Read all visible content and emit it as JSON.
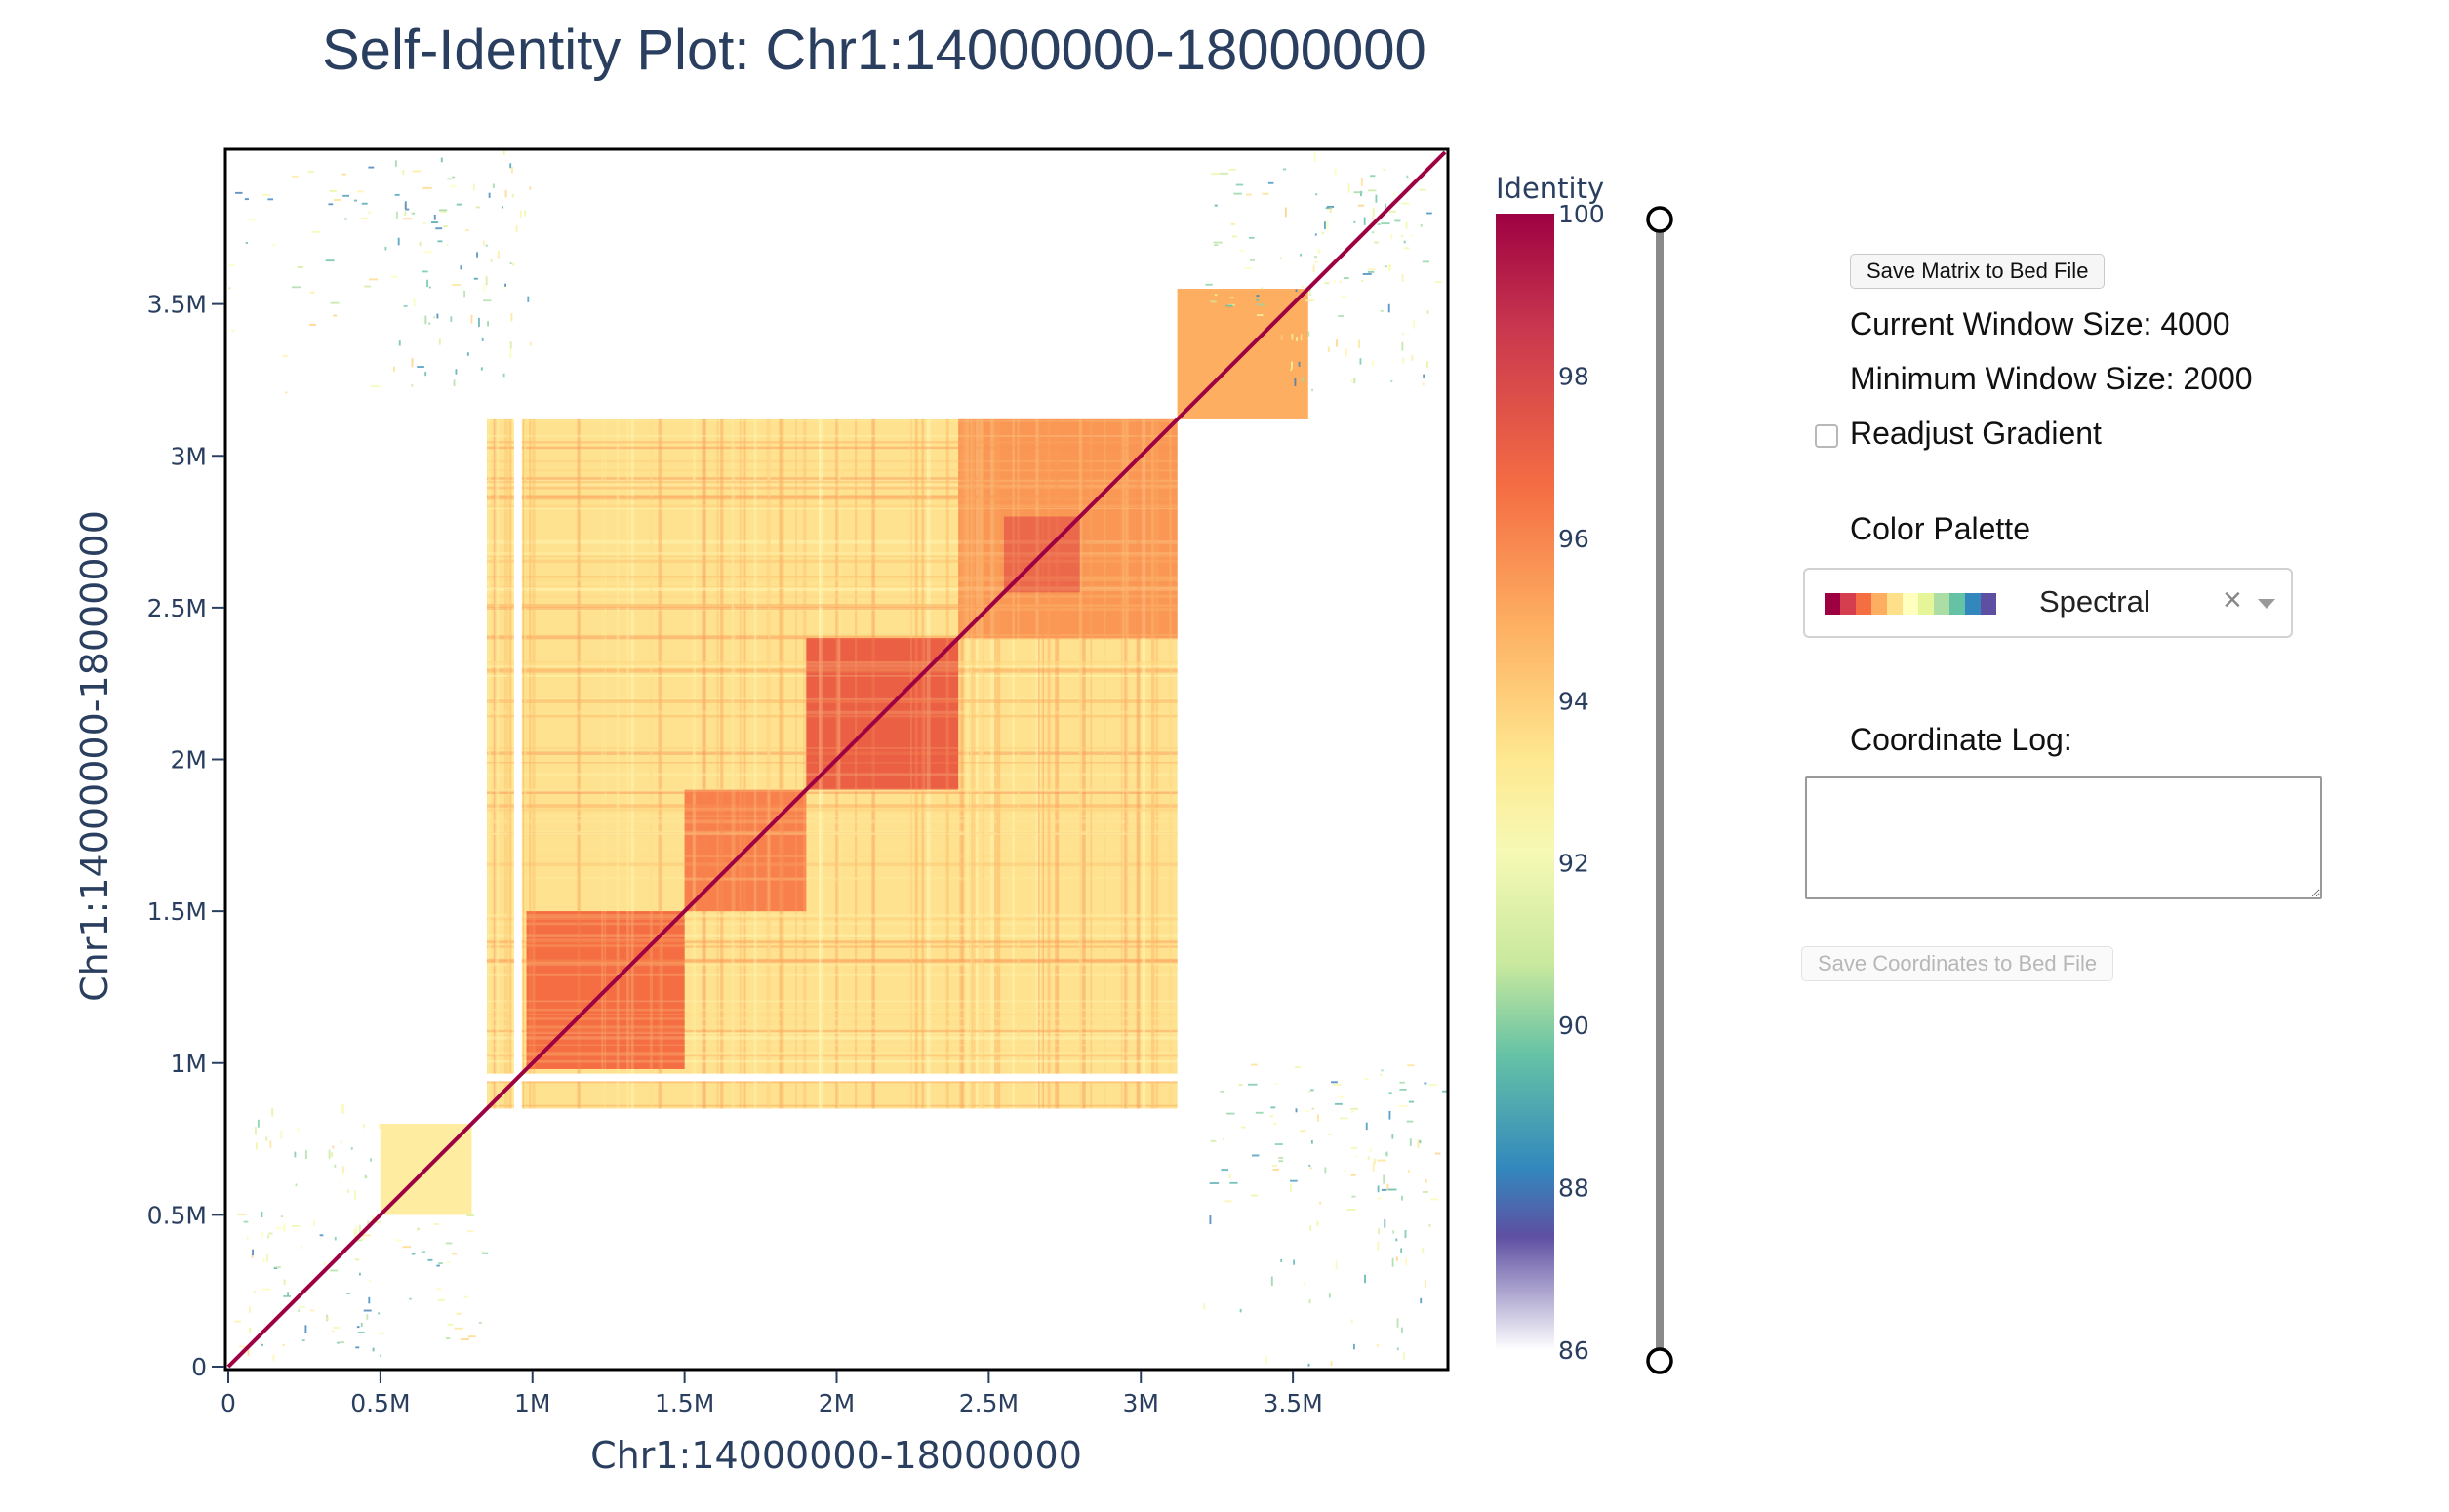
{
  "plot": {
    "title": "Self-Identity Plot: Chr1:14000000-18000000",
    "xlabel": "Chr1:14000000-18000000",
    "ylabel": "Chr1:14000000-18000000"
  },
  "colorbar": {
    "title": "Identity",
    "ticks": [
      "100",
      "98",
      "96",
      "94",
      "92",
      "90",
      "88",
      "86"
    ]
  },
  "chart_data": {
    "type": "heatmap",
    "title": "Self-Identity Plot: Chr1:14000000-18000000",
    "xlabel": "Chr1:14000000-18000000",
    "ylabel": "Chr1:14000000-18000000",
    "xlim": [
      0,
      4000000
    ],
    "ylim": [
      0,
      4000000
    ],
    "x_ticks": [
      0,
      500000,
      1000000,
      1500000,
      2000000,
      2500000,
      3000000,
      3500000
    ],
    "x_tick_labels": [
      "0",
      "0.5M",
      "1M",
      "1.5M",
      "2M",
      "2.5M",
      "3M",
      "3.5M"
    ],
    "y_ticks": [
      0,
      500000,
      1000000,
      1500000,
      2000000,
      2500000,
      3000000,
      3500000
    ],
    "y_tick_labels": [
      "0",
      "0.5M",
      "1M",
      "1.5M",
      "2M",
      "2.5M",
      "3M",
      "3.5M"
    ],
    "colorscale": "Spectral",
    "zlim": [
      86,
      100
    ],
    "colorbar_title": "Identity",
    "regions": [
      {
        "x": [
          850000,
          3120000
        ],
        "y": [
          850000,
          3120000
        ],
        "identity": 94.3
      },
      {
        "x": [
          980000,
          1500000
        ],
        "y": [
          980000,
          1500000
        ],
        "identity": 97.2
      },
      {
        "x": [
          1500000,
          1900000
        ],
        "y": [
          1500000,
          1900000
        ],
        "identity": 96.8
      },
      {
        "x": [
          1900000,
          2400000
        ],
        "y": [
          1900000,
          2400000
        ],
        "identity": 97.6
      },
      {
        "x": [
          2400000,
          3120000
        ],
        "y": [
          2400000,
          3120000
        ],
        "identity": 96.3
      },
      {
        "x": [
          2550000,
          2800000
        ],
        "y": [
          2550000,
          2800000
        ],
        "identity": 97.8
      },
      {
        "x": [
          3120000,
          3550000
        ],
        "y": [
          3120000,
          3550000
        ],
        "identity": 95.8
      },
      {
        "x": [
          500000,
          800000
        ],
        "y": [
          500000,
          800000
        ],
        "identity": 93.8
      }
    ],
    "diagonal_identity": 100
  },
  "controls": {
    "save_matrix_label": "Save Matrix to Bed File",
    "current_window": "Current Window Size: 4000",
    "minimum_window": "Minimum Window Size: 2000",
    "readjust_label": "Readjust Gradient",
    "color_palette_label": "Color Palette",
    "palette_value": "Spectral",
    "palette_swatches": [
      "#9e0142",
      "#d53e4f",
      "#f46d43",
      "#fdae61",
      "#fee08b",
      "#ffffbf",
      "#e6f598",
      "#abdda4",
      "#66c2a5",
      "#3288bd",
      "#5e4fa2"
    ],
    "coordinate_log_label": "Coordinate Log:",
    "coordinate_log_value": "",
    "save_coords_label": "Save Coordinates to Bed File"
  }
}
